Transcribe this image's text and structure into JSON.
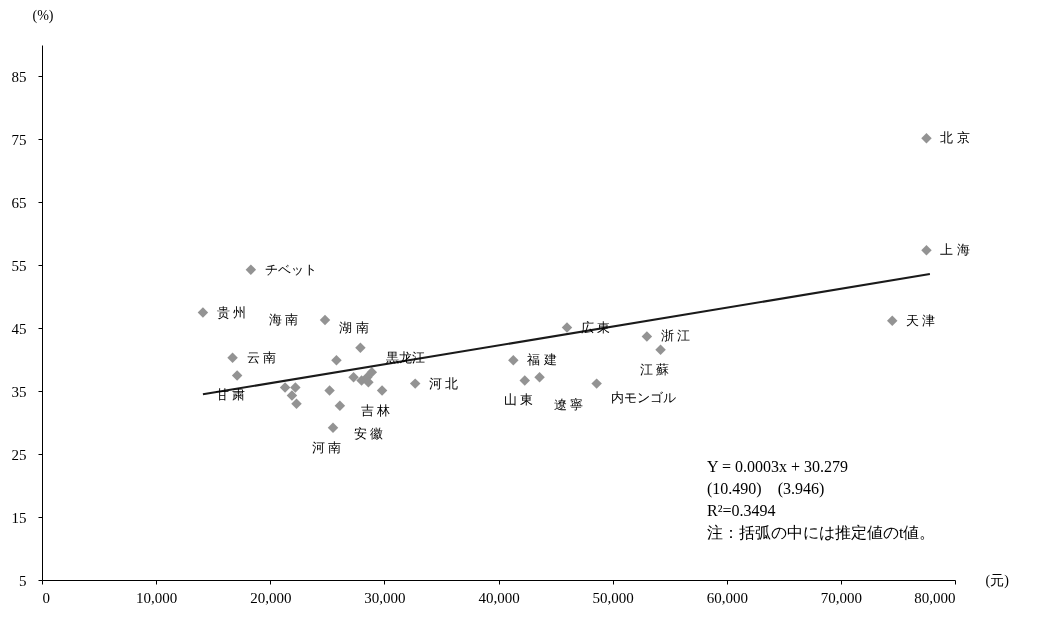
{
  "chart_data": {
    "type": "scatter",
    "xlabel": "(元)",
    "ylabel": "(%)",
    "xlim": [
      0,
      80000
    ],
    "ylim": [
      5,
      90
    ],
    "xticks": [
      0,
      {
        "value": 10000,
        "label": "10,000"
      },
      {
        "value": 20000,
        "label": "20,000"
      },
      {
        "value": 30000,
        "label": "30,000"
      },
      {
        "value": 40000,
        "label": "40,000"
      },
      {
        "value": 50000,
        "label": "50,000"
      },
      {
        "value": 60000,
        "label": "60,000"
      },
      {
        "value": 70000,
        "label": "70,000"
      },
      {
        "value": 80000,
        "label": "80,000"
      }
    ],
    "yticks": [
      5,
      15,
      25,
      35,
      45,
      55,
      65,
      75,
      85
    ],
    "series": [
      {
        "marker": "diamond",
        "color": "#939393",
        "x": [
          77500,
          77500,
          74500,
          53000,
          54200,
          46000,
          41300,
          42300,
          43600,
          48600,
          32700,
          27900,
          24800,
          18300,
          14100,
          16700,
          17100,
          21300,
          22200,
          21900,
          22300,
          25200,
          26100,
          25500,
          25800,
          27300,
          28000,
          28500,
          28900,
          28600,
          29800
        ],
        "values": [
          75.2,
          57.4,
          46.2,
          43.7,
          41.6,
          45.1,
          39.9,
          36.7,
          37.2,
          36.2,
          36.2,
          41.9,
          46.3,
          54.3,
          47.5,
          40.3,
          37.5,
          35.6,
          35.6,
          34.3,
          33.0,
          35.1,
          32.7,
          29.2,
          39.9,
          37.2,
          36.7,
          37.2,
          38.0,
          36.4,
          35.1
        ]
      },
      {
        "type": "line",
        "color": "#1a1a1a",
        "x": [
          14100,
          77800
        ],
        "values": [
          34.5,
          53.6
        ]
      }
    ],
    "annotations": [
      "Y = 0.0003x + 30.279",
      "(10.490)　(3.946)",
      "R²=0.3494",
      "注：括弧の中には推定値のt値。",
      {
        "text": "北 京",
        "x": 77500,
        "y": 75.2
      },
      {
        "text": "上 海",
        "x": 77500,
        "y": 57.4
      },
      {
        "text": "天 津",
        "x": 74500,
        "y": 46.2
      },
      {
        "text": "浙 江",
        "x": 53000,
        "y": 43.7
      },
      {
        "text": "江 蘇",
        "x": 54200,
        "y": 41.6
      },
      {
        "text": "広 東",
        "x": 46000,
        "y": 45.1
      },
      {
        "text": "福 建",
        "x": 41300,
        "y": 39.9
      },
      {
        "text": "山 東",
        "x": 42300,
        "y": 36.7
      },
      {
        "text": "遼 寧",
        "x": 43600,
        "y": 37.2
      },
      {
        "text": "内モンゴル",
        "x": 48600,
        "y": 36.2
      },
      {
        "text": "河 北",
        "x": 32700,
        "y": 36.2
      },
      {
        "text": "吉 林",
        "x": 29800,
        "y": 35.1
      },
      {
        "text": "黒龙江",
        "x": 28900,
        "y": 38.0
      },
      {
        "text": "湖 南",
        "x": 27900,
        "y": 41.9
      },
      {
        "text": "海 南",
        "x": 24800,
        "y": 46.3
      },
      {
        "text": "チベット",
        "x": 18300,
        "y": 54.3
      },
      {
        "text": "贵 州",
        "x": 14100,
        "y": 47.5
      },
      {
        "text": "云 南",
        "x": 16700,
        "y": 40.3
      },
      {
        "text": "甘 粛",
        "x": 17100,
        "y": 37.5
      },
      {
        "text": "安 徽",
        "x": 26100,
        "y": 32.7
      },
      {
        "text": "河 南",
        "x": 25500,
        "y": 29.2
      }
    ]
  }
}
